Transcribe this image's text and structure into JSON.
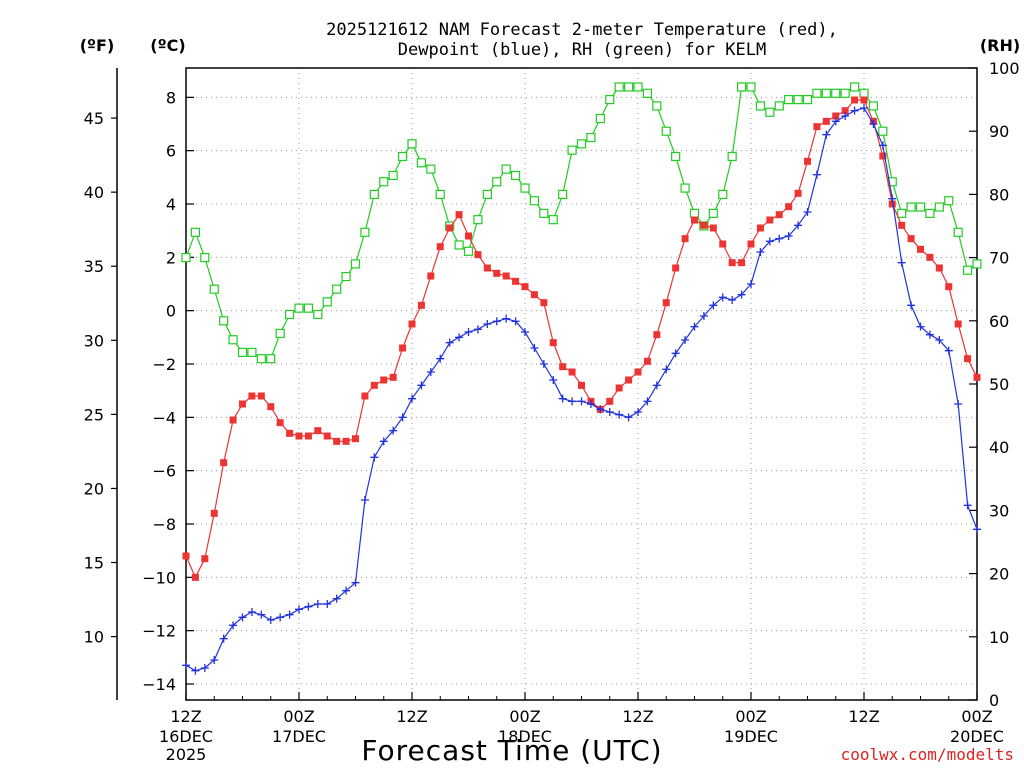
{
  "chart_data": {
    "type": "line",
    "title_line1": "2025121612 NAM Forecast 2-meter Temperature (red),",
    "title_line2": "Dewpoint (blue), RH (green) for KELM",
    "xlabel": "Forecast Time (UTC)",
    "credit": "coolwx.com/modelts",
    "units": {
      "fahrenheit": "(ºF)",
      "celsius": "(ºC)",
      "rh": "(RH)"
    },
    "x_range_hours": [
      0,
      84
    ],
    "ylim_c": [
      -14.6,
      9.1
    ],
    "ylim_rh": [
      0,
      100
    ],
    "x_ticks": [
      {
        "hour": 0,
        "time": "12Z",
        "date": "16DEC",
        "year": "2025"
      },
      {
        "hour": 12,
        "time": "00Z",
        "date": "17DEC",
        "year": ""
      },
      {
        "hour": 24,
        "time": "12Z",
        "date": "",
        "year": ""
      },
      {
        "hour": 36,
        "time": "00Z",
        "date": "18DEC",
        "year": ""
      },
      {
        "hour": 48,
        "time": "12Z",
        "date": "",
        "year": ""
      },
      {
        "hour": 60,
        "time": "00Z",
        "date": "19DEC",
        "year": ""
      },
      {
        "hour": 72,
        "time": "12Z",
        "date": "",
        "year": ""
      },
      {
        "hour": 84,
        "time": "00Z",
        "date": "20DEC",
        "year": ""
      }
    ],
    "y_ticks_c": [
      -14,
      -12,
      -10,
      -8,
      -6,
      -4,
      -2,
      0,
      2,
      4,
      6,
      8
    ],
    "y_ticks_f": [
      10,
      15,
      20,
      25,
      30,
      35,
      40,
      45
    ],
    "y_ticks_rh": [
      0,
      10,
      20,
      30,
      40,
      50,
      60,
      70,
      80,
      90,
      100
    ],
    "hours": [
      0,
      1,
      2,
      3,
      4,
      5,
      6,
      7,
      8,
      9,
      10,
      11,
      12,
      13,
      14,
      15,
      16,
      17,
      18,
      19,
      20,
      21,
      22,
      23,
      24,
      25,
      26,
      27,
      28,
      29,
      30,
      31,
      32,
      33,
      34,
      35,
      36,
      37,
      38,
      39,
      40,
      41,
      42,
      43,
      44,
      45,
      46,
      47,
      48,
      49,
      50,
      51,
      52,
      53,
      54,
      55,
      56,
      57,
      58,
      59,
      60,
      61,
      62,
      63,
      64,
      65,
      66,
      67,
      68,
      69,
      70,
      71,
      72,
      73,
      74,
      75,
      76,
      77,
      78,
      79,
      80,
      81,
      82,
      83,
      84
    ],
    "series": [
      {
        "name": "Temperature",
        "unit": "C",
        "color": "#ee3333",
        "marker": "filled-square",
        "values": [
          -9.2,
          -10.0,
          -9.3,
          -7.6,
          -5.7,
          -4.1,
          -3.5,
          -3.2,
          -3.2,
          -3.6,
          -4.2,
          -4.6,
          -4.7,
          -4.7,
          -4.5,
          -4.7,
          -4.9,
          -4.9,
          -4.8,
          -3.2,
          -2.8,
          -2.6,
          -2.5,
          -1.4,
          -0.5,
          0.2,
          1.3,
          2.4,
          3.1,
          3.6,
          2.8,
          2.1,
          1.6,
          1.4,
          1.3,
          1.1,
          0.9,
          0.6,
          0.3,
          -1.2,
          -2.1,
          -2.3,
          -2.8,
          -3.4,
          -3.7,
          -3.4,
          -2.9,
          -2.6,
          -2.3,
          -1.9,
          -0.9,
          0.3,
          1.6,
          2.7,
          3.4,
          3.2,
          3.1,
          2.5,
          1.8,
          1.8,
          2.5,
          3.1,
          3.4,
          3.6,
          3.9,
          4.4,
          5.6,
          6.9,
          7.1,
          7.3,
          7.5,
          7.9,
          7.9,
          7.1,
          5.8,
          4.0,
          3.2,
          2.7,
          2.3,
          2.0,
          1.6,
          0.9,
          -0.5,
          -1.8,
          -2.5
        ]
      },
      {
        "name": "Dewpoint",
        "unit": "C",
        "color": "#2233dd",
        "marker": "plus",
        "values": [
          -13.3,
          -13.5,
          -13.4,
          -13.1,
          -12.3,
          -11.8,
          -11.5,
          -11.3,
          -11.4,
          -11.6,
          -11.5,
          -11.4,
          -11.2,
          -11.1,
          -11.0,
          -11.0,
          -10.8,
          -10.5,
          -10.2,
          -7.1,
          -5.5,
          -4.9,
          -4.5,
          -4.0,
          -3.3,
          -2.8,
          -2.3,
          -1.8,
          -1.2,
          -1.0,
          -0.8,
          -0.7,
          -0.5,
          -0.4,
          -0.3,
          -0.4,
          -0.8,
          -1.4,
          -2.0,
          -2.6,
          -3.3,
          -3.4,
          -3.4,
          -3.5,
          -3.7,
          -3.8,
          -3.9,
          -4.0,
          -3.8,
          -3.4,
          -2.8,
          -2.2,
          -1.6,
          -1.1,
          -0.6,
          -0.2,
          0.2,
          0.5,
          0.4,
          0.6,
          1.0,
          2.2,
          2.6,
          2.7,
          2.8,
          3.2,
          3.7,
          5.1,
          6.6,
          7.1,
          7.3,
          7.5,
          7.6,
          7.0,
          6.2,
          4.2,
          1.8,
          0.2,
          -0.6,
          -0.9,
          -1.1,
          -1.5,
          -3.5,
          -7.3,
          -8.2
        ]
      },
      {
        "name": "RH",
        "unit": "%",
        "color": "#22cc22",
        "marker": "open-square",
        "values": [
          70,
          74,
          70,
          65,
          60,
          57,
          55,
          55,
          54,
          54,
          58,
          61,
          62,
          62,
          61,
          63,
          65,
          67,
          69,
          74,
          80,
          82,
          83,
          86,
          88,
          85,
          84,
          80,
          75,
          72,
          71,
          76,
          80,
          82,
          84,
          83,
          81,
          79,
          77,
          76,
          80,
          87,
          88,
          89,
          92,
          95,
          97,
          97,
          97,
          96,
          94,
          90,
          86,
          81,
          77,
          75,
          77,
          80,
          86,
          97,
          97,
          94,
          93,
          94,
          95,
          95,
          95,
          96,
          96,
          96,
          96,
          97,
          96,
          94,
          90,
          82,
          77,
          78,
          78,
          77,
          78,
          79,
          74,
          68,
          69
        ]
      }
    ]
  }
}
